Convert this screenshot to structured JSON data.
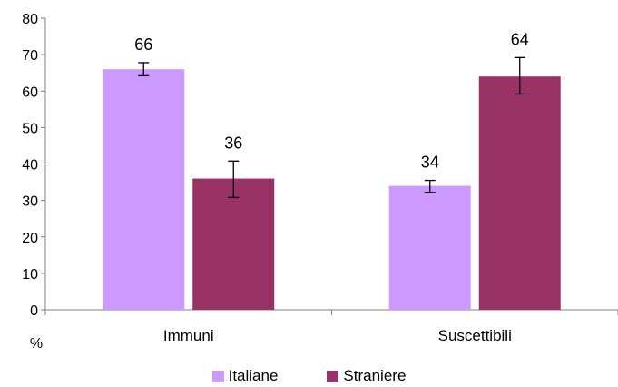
{
  "chart_data": {
    "type": "bar",
    "categories": [
      "Immuni",
      "Suscettibili"
    ],
    "series": [
      {
        "name": "Italiane",
        "color": "#cc99ff",
        "values": [
          66,
          34
        ],
        "error_low": [
          64.2,
          32.2
        ],
        "error_high": [
          67.8,
          35.5
        ]
      },
      {
        "name": "Straniere",
        "color": "#993366",
        "values": [
          36,
          64
        ],
        "error_low": [
          30.8,
          59.2
        ],
        "error_high": [
          40.8,
          69.2
        ]
      }
    ],
    "data_labels": [
      [
        "66",
        "34"
      ],
      [
        "36",
        "64"
      ]
    ],
    "ylim": [
      0,
      80
    ],
    "yticks": [
      0,
      10,
      20,
      30,
      40,
      50,
      60,
      70,
      80
    ],
    "ylabel": "%",
    "legend_position": "bottom",
    "grid": false
  }
}
